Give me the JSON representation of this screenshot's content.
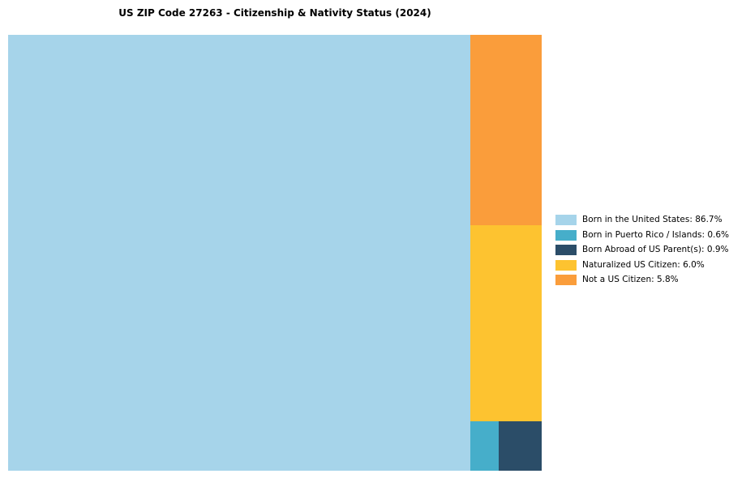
{
  "chart_data": {
    "type": "treemap",
    "title": "US ZIP Code 27263 - Citizenship & Nativity Status (2024)",
    "legend_position": "right",
    "unit": "%",
    "series": [
      {
        "name": "Born in the United States",
        "value": 86.7,
        "color": "#a6d4ea"
      },
      {
        "name": "Born in Puerto Rico / Islands",
        "value": 0.6,
        "color": "#46aeca"
      },
      {
        "name": "Born Abroad of US Parent(s)",
        "value": 0.9,
        "color": "#2b4d68"
      },
      {
        "name": "Naturalized US Citizen",
        "value": 6.0,
        "color": "#fdc330"
      },
      {
        "name": "Not a US Citizen",
        "value": 5.8,
        "color": "#fa9d3b"
      }
    ],
    "legend_labels": [
      "Born in the United States: 86.7%",
      "Born in Puerto Rico / Islands: 0.6%",
      "Born Abroad of US Parent(s): 0.9%",
      "Naturalized US Citizen: 6.0%",
      "Not a US Citizen: 5.8%"
    ]
  }
}
